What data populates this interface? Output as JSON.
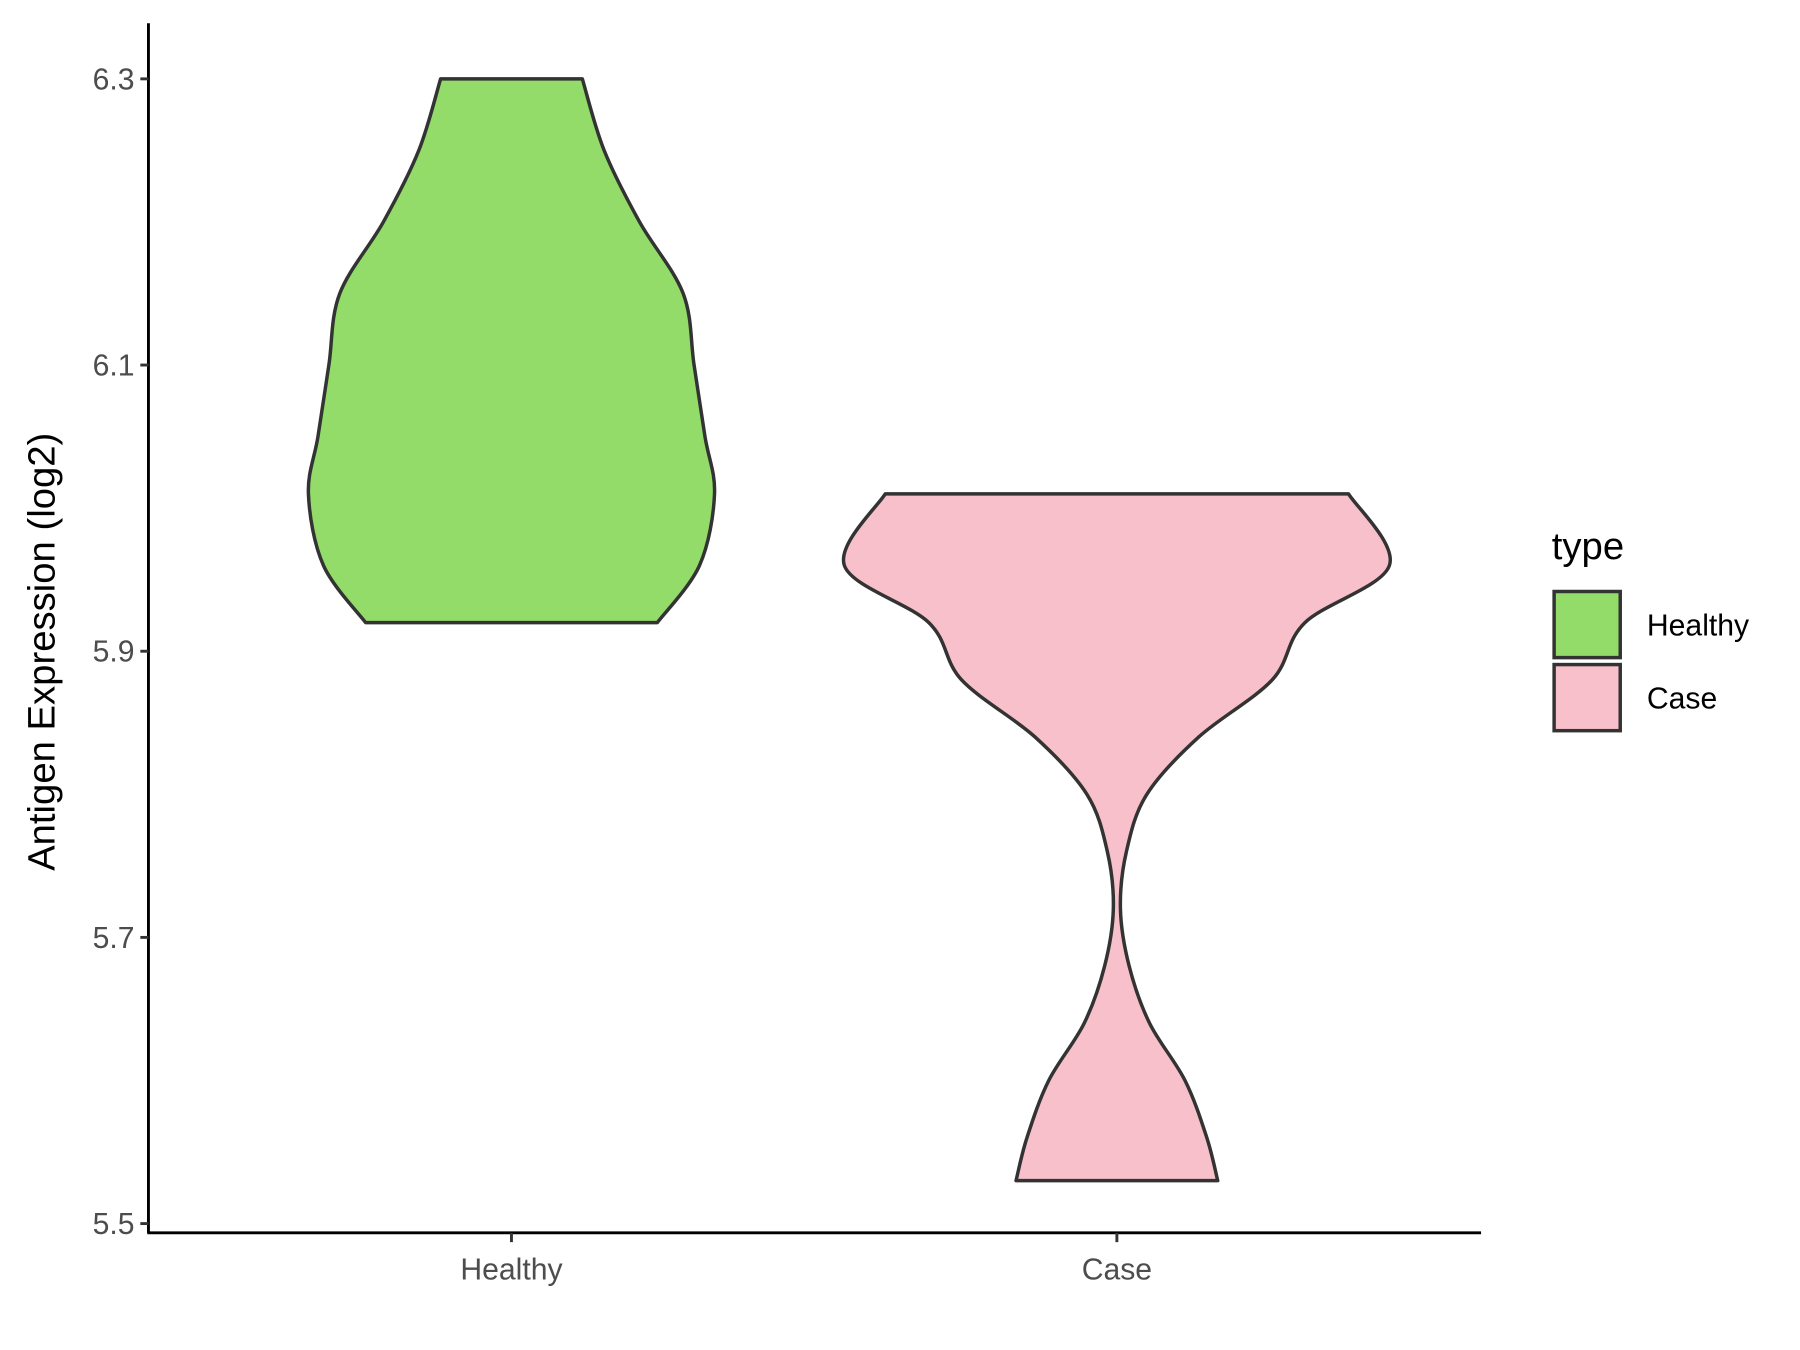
{
  "chart_data": {
    "type": "violin",
    "title": "",
    "xlabel": "",
    "ylabel": "Antigen Expression (log2)",
    "ylim": [
      5.5,
      6.3
    ],
    "y_ticks": [
      "5.5",
      "5.7",
      "5.9",
      "6.1",
      "6.3"
    ],
    "categories": [
      "Healthy",
      "Case"
    ],
    "grid": false,
    "legend": {
      "title": "type",
      "position": "right",
      "entries": [
        "Healthy",
        "Case"
      ]
    },
    "series": [
      {
        "name": "Healthy",
        "color": "#93DC6A",
        "min": 5.92,
        "max": 6.3,
        "density_profile": [
          [
            6.3,
            0.26
          ],
          [
            6.25,
            0.34
          ],
          [
            6.2,
            0.47
          ],
          [
            6.15,
            0.63
          ],
          [
            6.1,
            0.67
          ],
          [
            6.05,
            0.71
          ],
          [
            6.01,
            0.745
          ],
          [
            5.96,
            0.69
          ],
          [
            5.92,
            0.535
          ]
        ]
      },
      {
        "name": "Case",
        "color": "#F7C0CB",
        "min": 5.53,
        "max": 6.01,
        "density_profile": [
          [
            6.01,
            0.85
          ],
          [
            5.96,
            1.0
          ],
          [
            5.92,
            0.69
          ],
          [
            5.88,
            0.57
          ],
          [
            5.84,
            0.3
          ],
          [
            5.8,
            0.11
          ],
          [
            5.76,
            0.035
          ],
          [
            5.72,
            0.013
          ],
          [
            5.68,
            0.045
          ],
          [
            5.64,
            0.12
          ],
          [
            5.6,
            0.25
          ],
          [
            5.56,
            0.33
          ],
          [
            5.53,
            0.37
          ]
        ]
      }
    ],
    "outline_color": "#333333"
  }
}
